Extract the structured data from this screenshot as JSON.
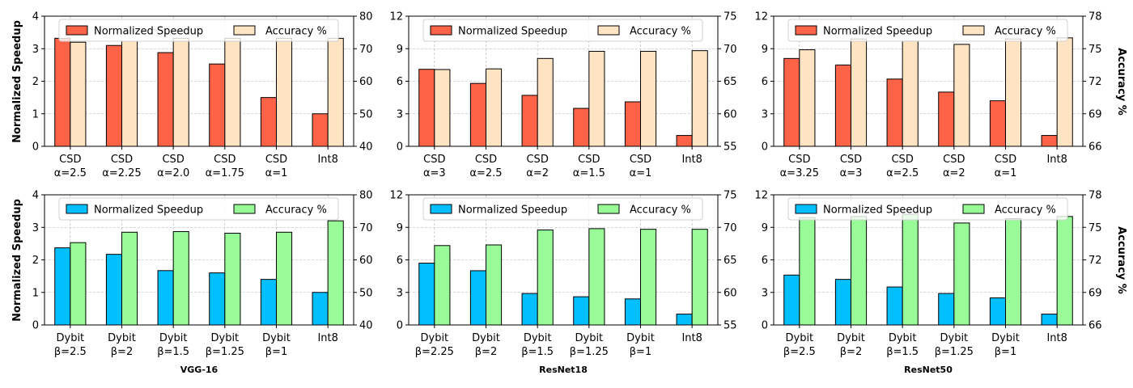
{
  "figure": {
    "left_ylabel": "Normalized Speedup",
    "right_ylabel": "Accuracy %",
    "legend": {
      "speedup": "Normalized Speedup",
      "accuracy": "Accuracy %"
    },
    "colors": {
      "speedup_top": "#ff6347",
      "accuracy_top": "#ffe4c4",
      "speedup_bottom": "#00bfff",
      "accuracy_bottom": "#98fb98",
      "edge": "#000000",
      "grid": "#b0b0b0"
    }
  },
  "chart_data": [
    {
      "type": "bar",
      "panel": "top-left",
      "categories": [
        "CSD\nα=2.5",
        "CSD\nα=2.25",
        "CSD\nα=2.0",
        "CSD\nα=1.75",
        "CSD\nα=1",
        "Int8"
      ],
      "series": [
        {
          "name": "Normalized Speedup",
          "axis": "left",
          "values": [
            3.32,
            3.1,
            2.88,
            2.53,
            1.5,
            1.0
          ]
        },
        {
          "name": "Accuracy %",
          "axis": "right",
          "values": [
            72.0,
            72.3,
            73.2,
            73.2,
            73.2,
            73.2
          ]
        }
      ],
      "ylim_left": [
        0,
        4
      ],
      "yticks_left": [
        0,
        1,
        2,
        3,
        4
      ],
      "ylim_right": [
        40,
        80
      ],
      "yticks_right": [
        40,
        50,
        60,
        70,
        80
      ],
      "grid": true,
      "legend": "top"
    },
    {
      "type": "bar",
      "panel": "top-middle",
      "categories": [
        "CSD\nα=3",
        "CSD\nα=2.5",
        "CSD\nα=2",
        "CSD\nα=1.5",
        "CSD\nα=1",
        "Int8"
      ],
      "series": [
        {
          "name": "Normalized Speedup",
          "axis": "left",
          "values": [
            7.1,
            5.8,
            4.7,
            3.5,
            4.1,
            1.0
          ]
        },
        {
          "name": "Accuracy %",
          "axis": "right",
          "values": [
            66.8,
            66.9,
            68.5,
            69.6,
            69.6,
            69.7
          ]
        }
      ],
      "ylim_left": [
        0,
        12
      ],
      "yticks_left": [
        0,
        3,
        6,
        9,
        12
      ],
      "ylim_right": [
        55,
        75
      ],
      "yticks_right": [
        55,
        60,
        65,
        70,
        75
      ],
      "grid": true,
      "legend": "top"
    },
    {
      "type": "bar",
      "panel": "top-right",
      "categories": [
        "CSD\nα=3.25",
        "CSD\nα=3",
        "CSD\nα=2.5",
        "CSD\nα=2",
        "CSD\nα=1",
        "Int8"
      ],
      "series": [
        {
          "name": "Normalized Speedup",
          "axis": "left",
          "values": [
            8.1,
            7.5,
            6.2,
            5.0,
            4.2,
            1.0
          ]
        },
        {
          "name": "Accuracy %",
          "axis": "right",
          "values": [
            74.9,
            75.9,
            75.7,
            75.4,
            75.9,
            76.0
          ]
        }
      ],
      "ylim_left": [
        0,
        12
      ],
      "yticks_left": [
        0,
        3,
        6,
        9,
        12
      ],
      "ylim_right": [
        66,
        78
      ],
      "yticks_right": [
        66,
        69,
        72,
        75,
        78
      ],
      "grid": true,
      "legend": "top"
    },
    {
      "type": "bar",
      "panel": "bottom-left",
      "categories": [
        "Dybit\nβ=2.5",
        "Dybit\nβ=2",
        "Dybit\nβ=1.5",
        "Dybit\nβ=1.25",
        "Dybit\nβ=1",
        "Int8"
      ],
      "series": [
        {
          "name": "Normalized Speedup",
          "axis": "left",
          "values": [
            2.37,
            2.17,
            1.67,
            1.6,
            1.4,
            1.0
          ]
        },
        {
          "name": "Accuracy %",
          "axis": "right",
          "values": [
            65.3,
            68.5,
            68.7,
            68.2,
            68.5,
            72.0
          ]
        }
      ],
      "ylim_left": [
        0,
        4
      ],
      "yticks_left": [
        0,
        1,
        2,
        3,
        4
      ],
      "ylim_right": [
        40,
        80
      ],
      "yticks_right": [
        40,
        50,
        60,
        70,
        80
      ],
      "grid": true,
      "legend": "top",
      "xlabel": "VGG-16"
    },
    {
      "type": "bar",
      "panel": "bottom-middle",
      "categories": [
        "Dybit\nβ=2.25",
        "Dybit\nβ=2",
        "Dybit\nβ=1.5",
        "Dybit\nβ=1.25",
        "Dybit\nβ=1",
        "Int8"
      ],
      "series": [
        {
          "name": "Normalized Speedup",
          "axis": "left",
          "values": [
            5.7,
            5.0,
            2.9,
            2.6,
            2.4,
            1.0
          ]
        },
        {
          "name": "Accuracy %",
          "axis": "right",
          "values": [
            67.2,
            67.3,
            69.6,
            69.8,
            69.7,
            69.7
          ]
        }
      ],
      "ylim_left": [
        0,
        12
      ],
      "yticks_left": [
        0,
        3,
        6,
        9,
        12
      ],
      "ylim_right": [
        55,
        75
      ],
      "yticks_right": [
        55,
        60,
        65,
        70,
        75
      ],
      "grid": true,
      "legend": "top",
      "xlabel": "ResNet18"
    },
    {
      "type": "bar",
      "panel": "bottom-right",
      "categories": [
        "Dybit\nβ=2.5",
        "Dybit\nβ=2",
        "Dybit\nβ=1.5",
        "Dybit\nβ=1.25",
        "Dybit\nβ=1",
        "Int8"
      ],
      "series": [
        {
          "name": "Normalized Speedup",
          "axis": "left",
          "values": [
            4.6,
            4.2,
            3.5,
            2.9,
            2.5,
            1.0
          ]
        },
        {
          "name": "Accuracy %",
          "axis": "right",
          "values": [
            75.9,
            76.0,
            76.2,
            75.4,
            75.8,
            76.0
          ]
        }
      ],
      "ylim_left": [
        0,
        12
      ],
      "yticks_left": [
        0,
        3,
        6,
        9,
        12
      ],
      "ylim_right": [
        66,
        78
      ],
      "yticks_right": [
        66,
        69,
        72,
        75,
        78
      ],
      "grid": true,
      "legend": "top",
      "xlabel": "ResNet50"
    }
  ]
}
